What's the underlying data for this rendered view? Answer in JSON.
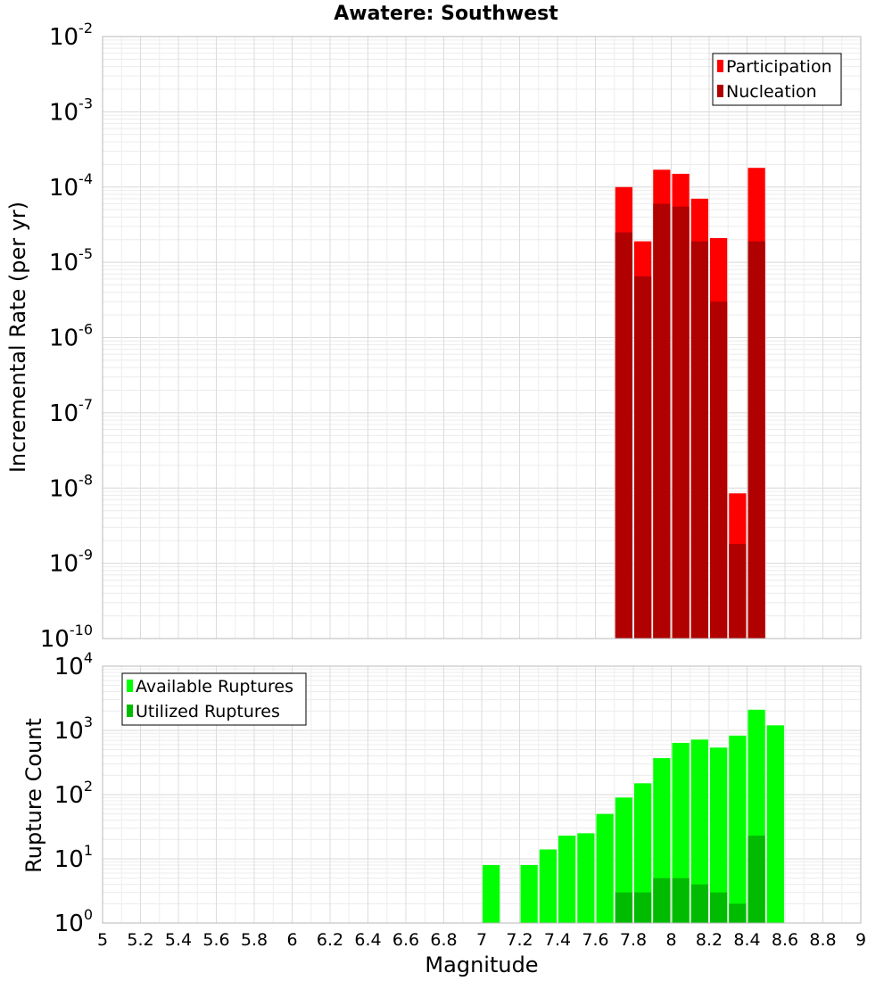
{
  "chart_data": [
    {
      "type": "bar",
      "title": "Awatere: Southwest",
      "xlabel": "Magnitude",
      "ylabel": "Incremental Rate (per yr)",
      "yscale": "log",
      "ylim_exponents": [
        -10,
        -2
      ],
      "y_tick_exponents": [
        -10,
        -9,
        -8,
        -7,
        -6,
        -5,
        -4,
        -3,
        -2
      ],
      "xlim": [
        5,
        9
      ],
      "bin_width": 0.1,
      "legend_position": "top-right",
      "series": [
        {
          "name": "Participation",
          "color": "#ff0000",
          "x": [
            7.75,
            7.85,
            7.95,
            8.05,
            8.15,
            8.25,
            8.35,
            8.45
          ],
          "values": [
            0.0001,
            1.9e-05,
            0.00017,
            0.00015,
            7e-05,
            2.1e-05,
            8.5e-09,
            0.00018
          ]
        },
        {
          "name": "Nucleation",
          "color": "#b00000",
          "x": [
            7.75,
            7.85,
            7.95,
            8.05,
            8.15,
            8.25,
            8.35,
            8.45
          ],
          "values": [
            2.5e-05,
            6.5e-06,
            6e-05,
            5.5e-05,
            1.9e-05,
            3e-06,
            1.8e-09,
            1.9e-05
          ]
        }
      ]
    },
    {
      "type": "bar",
      "title": "",
      "xlabel": "Magnitude",
      "ylabel": "Rupture Count",
      "yscale": "log",
      "ylim_exponents": [
        0,
        4
      ],
      "y_tick_exponents": [
        0,
        1,
        2,
        3,
        4
      ],
      "xlim": [
        5,
        9
      ],
      "bin_width": 0.1,
      "legend_position": "top-left",
      "series": [
        {
          "name": "Available Ruptures",
          "color": "#00ff00",
          "x": [
            7.05,
            7.25,
            7.35,
            7.45,
            7.55,
            7.65,
            7.75,
            7.85,
            7.95,
            8.05,
            8.15,
            8.25,
            8.35,
            8.45,
            8.55
          ],
          "values": [
            8,
            8,
            14,
            23,
            25,
            50,
            90,
            150,
            370,
            640,
            720,
            540,
            830,
            2100,
            1200
          ]
        },
        {
          "name": "Utilized Ruptures",
          "color": "#00bb00",
          "x": [
            7.75,
            7.85,
            7.95,
            8.05,
            8.15,
            8.25,
            8.35,
            8.45
          ],
          "values": [
            3,
            3,
            5,
            5,
            4,
            3,
            2,
            23
          ]
        }
      ]
    }
  ],
  "x_ticks": [
    "5",
    "5.2",
    "5.4",
    "5.6",
    "5.8",
    "6",
    "6.2",
    "6.4",
    "6.6",
    "6.8",
    "7",
    "7.2",
    "7.4",
    "7.6",
    "7.8",
    "8",
    "8.2",
    "8.4",
    "8.6",
    "8.8",
    "9"
  ]
}
